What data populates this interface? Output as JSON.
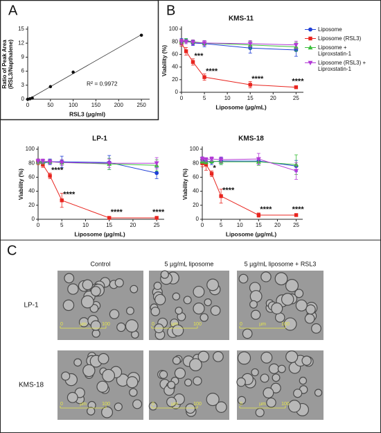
{
  "panels": [
    "A",
    "B",
    "C"
  ],
  "chart_data": [
    {
      "type": "scatter",
      "xlabel": "RSL3 (µg/ml)",
      "ylabel": [
        "Ratio of Peak Area",
        "(RSL3/Napthalene)"
      ],
      "annotation": "R² = 0.9972",
      "trendline": true,
      "color": "#111111",
      "x": [
        0,
        5,
        10,
        50,
        100,
        250
      ],
      "values": [
        0,
        0.1,
        0.25,
        2.7,
        5.8,
        13.7
      ],
      "xlim": [
        0,
        262
      ],
      "xticks": [
        0,
        50,
        100,
        150,
        200,
        250
      ],
      "ylim": [
        0,
        15
      ],
      "yticks": [
        0,
        3,
        6,
        9,
        12,
        15
      ]
    },
    {
      "type": "line",
      "title": "KMS-11",
      "xlabel": "Liposome (µg/mL)",
      "ylabel": "Viability (%)",
      "legend": "right",
      "x": [
        0,
        1,
        2.5,
        5,
        15,
        25
      ],
      "xlim": [
        0,
        26
      ],
      "xticks": [
        0,
        5,
        10,
        15,
        20,
        25
      ],
      "ylim": [
        0,
        100
      ],
      "yticks": [
        0,
        20,
        40,
        60,
        80,
        100
      ],
      "series": [
        {
          "name": "Liposome",
          "color": "#1f3fd6",
          "marker": "circle",
          "values": [
            80,
            82,
            78,
            77,
            70,
            67
          ],
          "errors": [
            5,
            3,
            4,
            5,
            8,
            10
          ]
        },
        {
          "name": "Liposome (RSL3)",
          "color": "#e8251f",
          "marker": "square",
          "values": [
            78,
            65,
            48,
            24,
            12,
            8
          ],
          "errors": [
            5,
            6,
            5,
            5,
            5,
            2
          ],
          "labels": [
            null,
            null,
            "***",
            "****",
            "****",
            "****"
          ]
        },
        {
          "name": "Liposome + Liproxstatin-1",
          "color": "#3bbf3b",
          "marker": "triangle",
          "values": [
            80,
            82,
            80,
            78,
            75,
            72
          ],
          "errors": [
            4,
            3,
            3,
            4,
            6,
            7
          ]
        },
        {
          "name": "Liposome (RSL3) + Liproxstatin-1",
          "color": "#b33ad6",
          "marker": "triangle-down",
          "values": [
            80,
            80,
            79,
            78,
            77,
            75
          ],
          "errors": [
            4,
            3,
            4,
            4,
            5,
            6
          ]
        }
      ]
    },
    {
      "type": "line",
      "title": "LP-1",
      "xlabel": "Liposome (µg/mL)",
      "ylabel": "Viability (%)",
      "x": [
        0,
        1,
        2.5,
        5,
        15,
        25
      ],
      "xlim": [
        0,
        26
      ],
      "xticks": [
        0,
        5,
        10,
        15,
        20,
        25
      ],
      "ylim": [
        0,
        100
      ],
      "yticks": [
        0,
        20,
        40,
        60,
        80,
        100
      ],
      "series": [
        {
          "name": "Liposome",
          "color": "#1f3fd6",
          "marker": "circle",
          "values": [
            83,
            80,
            82,
            82,
            81,
            66
          ],
          "errors": [
            3,
            4,
            4,
            8,
            10,
            8
          ]
        },
        {
          "name": "Liposome (RSL3)",
          "color": "#e8251f",
          "marker": "square",
          "values": [
            82,
            78,
            62,
            27,
            2,
            2
          ],
          "errors": [
            4,
            4,
            4,
            10,
            2,
            2
          ],
          "labels": [
            null,
            null,
            "****",
            "****",
            "****",
            "****"
          ]
        },
        {
          "name": "Liposome + Liproxstatin-1",
          "color": "#3bbf3b",
          "marker": "triangle",
          "values": [
            82,
            82,
            82,
            81,
            79,
            77
          ],
          "errors": [
            3,
            3,
            3,
            4,
            8,
            8
          ]
        },
        {
          "name": "Liposome (RSL3) + Liproxstatin-1",
          "color": "#b33ad6",
          "marker": "triangle-down",
          "values": [
            83,
            83,
            82,
            81,
            80,
            80
          ],
          "errors": [
            3,
            3,
            3,
            4,
            6,
            8
          ]
        }
      ]
    },
    {
      "type": "line",
      "title": "KMS-18",
      "xlabel": "Liposome (µg/mL)",
      "ylabel": "Viability (%)",
      "x": [
        0,
        1,
        2.5,
        5,
        15,
        25
      ],
      "xlim": [
        0,
        26
      ],
      "xticks": [
        0,
        5,
        10,
        15,
        20,
        25
      ],
      "ylim": [
        0,
        100
      ],
      "yticks": [
        0,
        20,
        40,
        60,
        80,
        100
      ],
      "series": [
        {
          "name": "Liposome",
          "color": "#1f3fd6",
          "marker": "circle",
          "values": [
            85,
            82,
            82,
            83,
            83,
            76
          ],
          "errors": [
            4,
            4,
            4,
            5,
            5,
            8
          ]
        },
        {
          "name": "Liposome (RSL3)",
          "color": "#e8251f",
          "marker": "square",
          "values": [
            80,
            78,
            65,
            33,
            6,
            6
          ],
          "errors": [
            5,
            8,
            4,
            10,
            3,
            2
          ],
          "labels": [
            null,
            null,
            "*",
            "****",
            "****",
            "****"
          ]
        },
        {
          "name": "Liposome + Liproxstatin-1",
          "color": "#3bbf3b",
          "marker": "triangle",
          "values": [
            83,
            82,
            83,
            82,
            82,
            78
          ],
          "errors": [
            3,
            3,
            3,
            4,
            5,
            14
          ]
        },
        {
          "name": "Liposome (RSL3) + Liproxstatin-1",
          "color": "#b33ad6",
          "marker": "triangle-down",
          "values": [
            86,
            85,
            86,
            85,
            86,
            69
          ],
          "errors": [
            3,
            3,
            3,
            4,
            8,
            12
          ]
        }
      ]
    }
  ],
  "microscopy": {
    "columns": [
      "Control",
      "5 µg/mL liposome",
      "5 µg/mL liposome + RSL3"
    ],
    "rows": [
      "LP-1",
      "KMS-18"
    ],
    "scale_bar": {
      "start": "0",
      "unit": "µm",
      "end": "100"
    }
  }
}
